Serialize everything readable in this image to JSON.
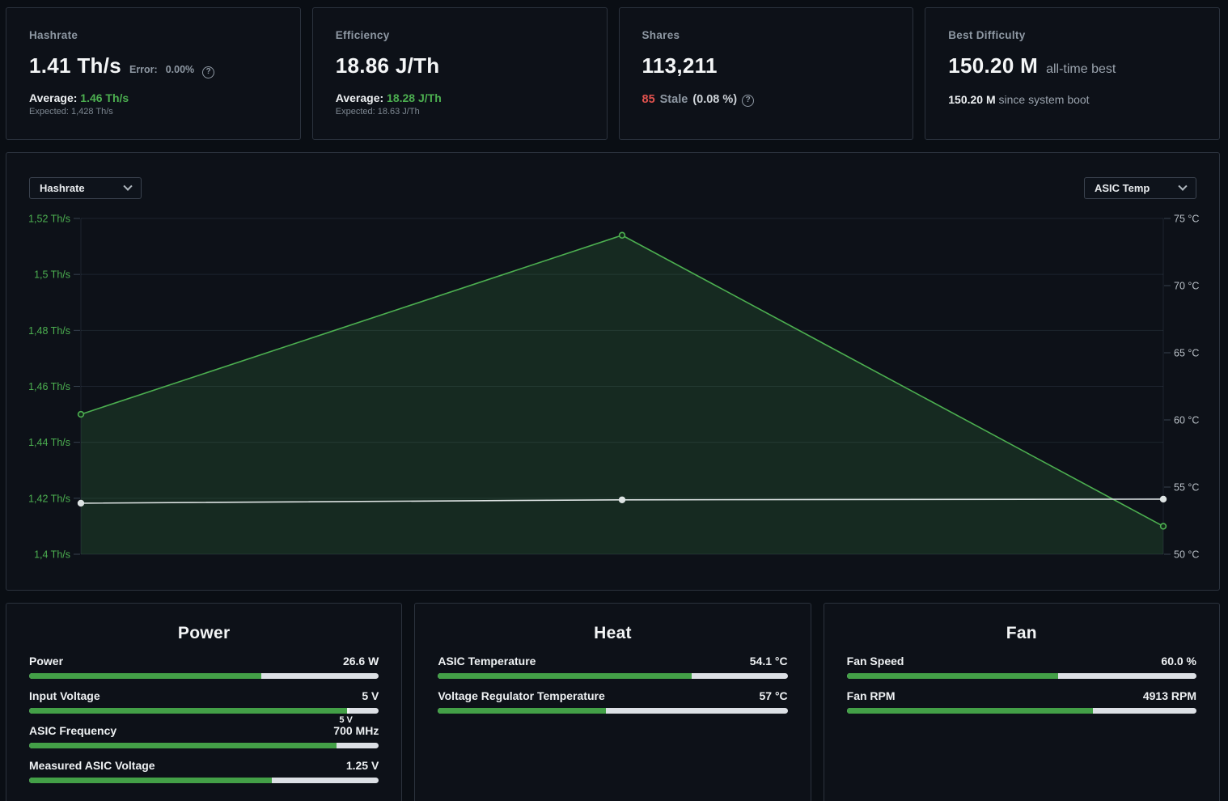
{
  "stat_cards": [
    {
      "title": "Hashrate",
      "value": "1.41 Th/s",
      "error_label": "Error:",
      "error_value": "0.00%",
      "average_label": "Average:",
      "average_value": "1.46 Th/s",
      "expected": "Expected: 1,428 Th/s"
    },
    {
      "title": "Efficiency",
      "value": "18.86 J/Th",
      "average_label": "Average:",
      "average_value": "18.28 J/Th",
      "expected": "Expected: 18.63 J/Th"
    },
    {
      "title": "Shares",
      "value": "113,211",
      "stale_count": "85",
      "stale_label": "Stale",
      "stale_percent": "(0.08 %)"
    },
    {
      "title": "Best Difficulty",
      "value": "150.20 M",
      "value_note": "all-time best",
      "boot_value": "150.20 M",
      "boot_note": "since system boot"
    }
  ],
  "chart": {
    "left_selector": "Hashrate",
    "right_selector": "ASIC Temp"
  },
  "chart_data": {
    "type": "line",
    "x": [
      0,
      0.5,
      1
    ],
    "series": [
      {
        "name": "Hashrate",
        "unit": "Th/s",
        "axis": "left",
        "color": "#4caf50",
        "area": true,
        "values": [
          1.45,
          1.514,
          1.41
        ]
      },
      {
        "name": "ASIC Temp",
        "unit": "°C",
        "axis": "right",
        "color": "#dde3e3",
        "area": false,
        "values": [
          53.8,
          54.05,
          54.1
        ]
      }
    ],
    "left_axis": {
      "min": 1.4,
      "max": 1.52,
      "tick_values": [
        1.52,
        1.5,
        1.48,
        1.46,
        1.44,
        1.42,
        1.4
      ],
      "tick_labels": [
        "1,52 Th/s",
        "1,5 Th/s",
        "1,48 Th/s",
        "1,46 Th/s",
        "1,44 Th/s",
        "1,42 Th/s",
        "1,4 Th/s"
      ]
    },
    "right_axis": {
      "min": 50,
      "max": 75,
      "tick_values": [
        75,
        70,
        65,
        60,
        55,
        50
      ],
      "tick_labels": [
        "75 °C",
        "70 °C",
        "65 °C",
        "60 °C",
        "55 °C",
        "50 °C"
      ]
    },
    "grid": "horizontal",
    "legend_position": "none"
  },
  "panels": [
    {
      "title": "Power",
      "rows": [
        {
          "label": "Power",
          "value": "26.6 W",
          "percent": 66.5
        },
        {
          "label": "Input Voltage",
          "value": "5 V",
          "percent": 91,
          "marker_label": "5 V"
        },
        {
          "label": "ASIC Frequency",
          "value": "700 MHz",
          "percent": 88
        },
        {
          "label": "Measured ASIC Voltage",
          "value": "1.25 V",
          "percent": 69.5
        }
      ]
    },
    {
      "title": "Heat",
      "rows": [
        {
          "label": "ASIC Temperature",
          "value": "54.1 °C",
          "percent": 72.5
        },
        {
          "label": "Voltage Regulator Temperature",
          "value": "57 °C",
          "percent": 48
        }
      ]
    },
    {
      "title": "Fan",
      "rows": [
        {
          "label": "Fan Speed",
          "value": "60.0 %",
          "percent": 60.5
        },
        {
          "label": "Fan RPM",
          "value": "4913 RPM",
          "percent": 70.5
        }
      ]
    }
  ],
  "colors": {
    "accent_green": "#4caf50",
    "area_fill": "rgba(76,175,80,0.16)",
    "temp_line": "#dde3e3",
    "bar_track": "#dce0e5",
    "bar_fill": "#43a047",
    "stale_red": "#e0524e",
    "grid_line": "rgba(150,180,205,0.12)",
    "tick_dash": "rgba(150,180,205,0.3)",
    "left_tick_text": "#4caf50",
    "right_tick_text": "#b9c0c7"
  }
}
